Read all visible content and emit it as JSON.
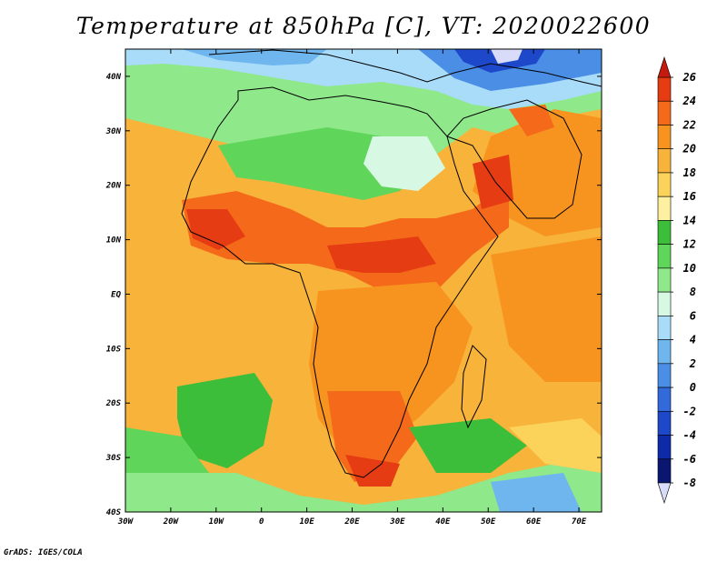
{
  "title": "Temperature at 850hPa [C], VT: 2020022600",
  "footer": "GrADS: IGES/COLA",
  "map": {
    "lon_range": [
      -30,
      75
    ],
    "lat_range": [
      -40,
      45
    ],
    "x_ticks": [
      "30W",
      "20W",
      "10W",
      "0",
      "10E",
      "20E",
      "30E",
      "40E",
      "50E",
      "60E",
      "70E"
    ],
    "y_ticks": [
      "40N",
      "30N",
      "20N",
      "10N",
      "EQ",
      "10S",
      "20S",
      "30S",
      "40S"
    ]
  },
  "colorbar": {
    "labels": [
      "26",
      "24",
      "22",
      "20",
      "18",
      "16",
      "14",
      "12",
      "10",
      "8",
      "6",
      "4",
      "2",
      "0",
      "-2",
      "-4",
      "-6",
      "-8"
    ],
    "colors": [
      "#e63c13",
      "#f56a1a",
      "#f7941f",
      "#f8b33a",
      "#fbd25a",
      "#fdf0a0",
      "#3dbe3a",
      "#5fd55a",
      "#8fe88a",
      "#d7f8e2",
      "#a9dcf8",
      "#6fb6ef",
      "#4a8ee6",
      "#3269db",
      "#1d48c9",
      "#0f2aa8",
      "#0a1670"
    ],
    "over_color": "#c41a10",
    "under_color": "#d8dcf8"
  }
}
